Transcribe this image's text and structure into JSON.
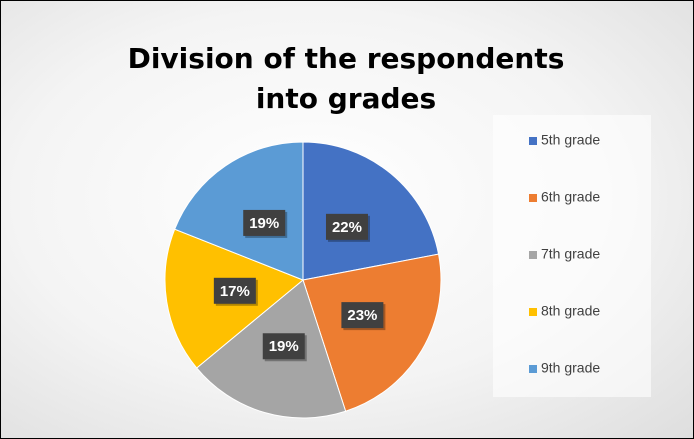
{
  "chart_data": {
    "type": "pie",
    "title": "Division of the respondents into grades",
    "categories": [
      "5th grade",
      "6th grade",
      "7th grade",
      "8th grade",
      "9th grade"
    ],
    "values": [
      22,
      23,
      19,
      17,
      19
    ],
    "value_labels": [
      "22%",
      "23%",
      "19%",
      "17%",
      "19%"
    ],
    "colors": [
      "#4472c4",
      "#ed7d31",
      "#a5a5a5",
      "#ffc000",
      "#5b9bd5"
    ],
    "legend": "right"
  }
}
